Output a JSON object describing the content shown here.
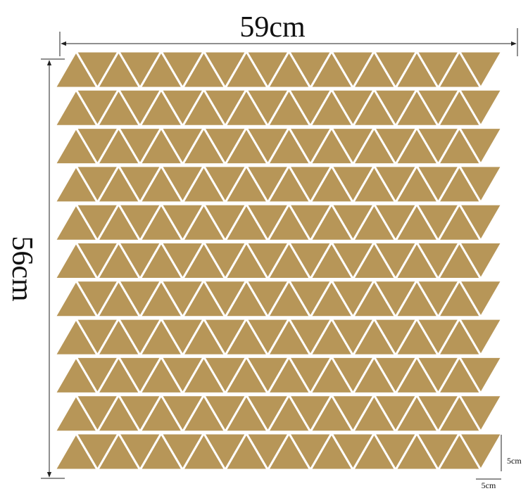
{
  "width_label": "59cm",
  "height_label": "56cm",
  "piece_height_label": "5cm",
  "piece_width_label": "5cm"
}
